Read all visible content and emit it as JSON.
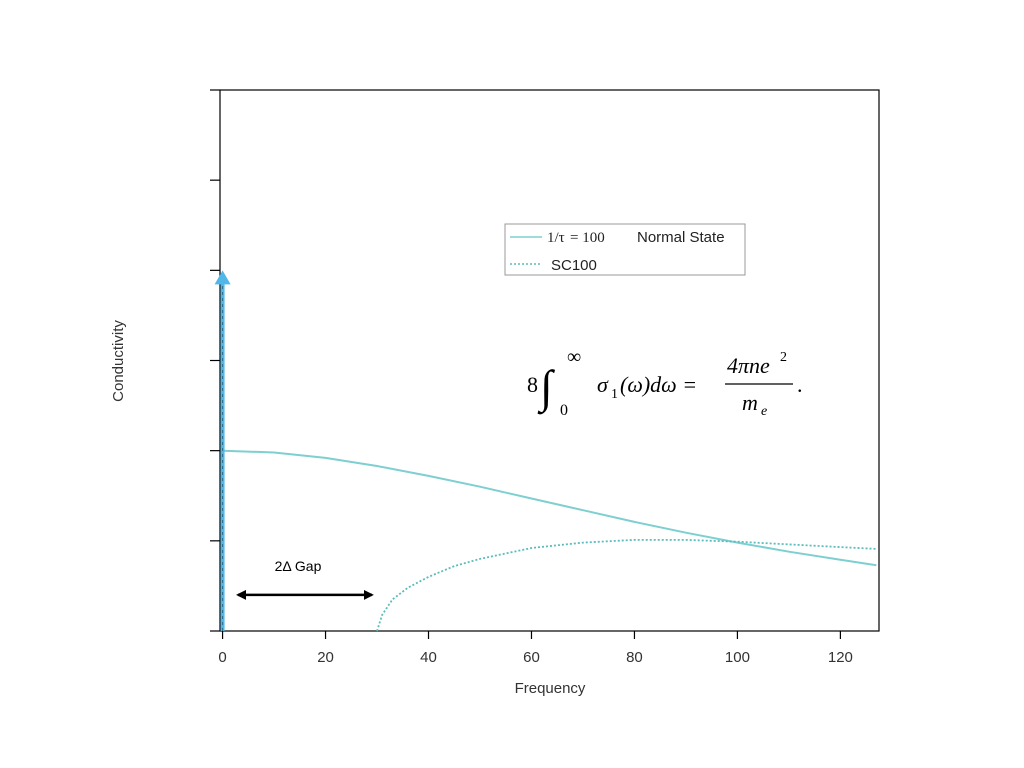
{
  "chart_data": {
    "type": "line",
    "xlabel": "Frequency",
    "ylabel": "Conductivity",
    "xlim": [
      -0.5,
      127.5
    ],
    "ylim": [
      0,
      6
    ],
    "x_ticks": [
      0,
      20,
      40,
      60,
      80,
      100,
      120
    ],
    "y_tick_count": 7,
    "y_tick_labels_shown": false,
    "grid": false,
    "legend": {
      "placement": "upper-right",
      "entries": [
        {
          "rate_label": "1/τ",
          "rate_value": "= 100",
          "state_label": "Normal State",
          "style": "solid",
          "color": "#7ecfcf"
        },
        {
          "label": "SC100",
          "style": "dotted",
          "color": "#5bbcbc"
        }
      ]
    },
    "series": [
      {
        "style": "solid",
        "color": "#7ecfcf",
        "x": [
          0,
          10,
          20,
          30,
          40,
          50,
          60,
          70,
          80,
          90,
          100,
          110,
          120,
          127
        ],
        "y": [
          2.0,
          1.98,
          1.92,
          1.83,
          1.72,
          1.6,
          1.47,
          1.34,
          1.21,
          1.09,
          0.98,
          0.88,
          0.79,
          0.73
        ]
      },
      {
        "style": "dotted",
        "color": "#5bbcbc",
        "x": [
          30,
          31,
          33,
          36,
          40,
          45,
          50,
          60,
          70,
          80,
          90,
          100,
          110,
          120,
          127
        ],
        "y": [
          0,
          0.18,
          0.35,
          0.48,
          0.6,
          0.72,
          0.8,
          0.92,
          0.98,
          1.01,
          1.01,
          0.99,
          0.96,
          0.93,
          0.91
        ]
      }
    ],
    "delta_peak": {
      "x": 0,
      "y_top": 4.0,
      "color": "#4fb8e8"
    },
    "annotations": {
      "gap_label": "2Δ Gap",
      "gap_range": [
        3,
        29
      ],
      "gap_y": 0.4
    },
    "equation": {
      "coefficient": "8",
      "upper_limit": "∞",
      "lower_limit": "0",
      "sigma": "σ",
      "sigma_sub": "1",
      "integrand_rest": "(ω)dω =",
      "numerator": "4πne",
      "numerator_sup": "2",
      "denominator": "m",
      "denominator_sub": "e",
      "trailing": "."
    }
  }
}
